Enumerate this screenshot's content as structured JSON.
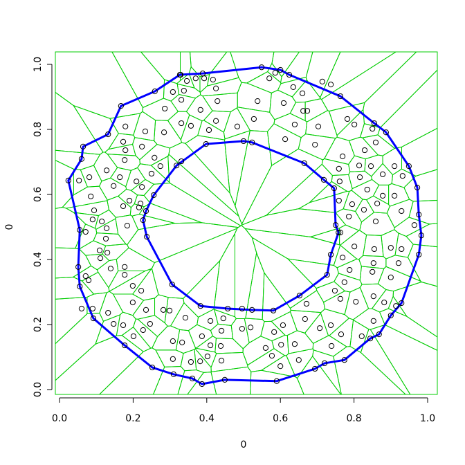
{
  "chart_data": {
    "type": "voronoi",
    "xlabel": "0",
    "ylabel": "0",
    "xlim": [
      0,
      1
    ],
    "ylim": [
      0,
      1
    ],
    "xticks": [
      {
        "value": 0,
        "label": "0.0"
      },
      0.2,
      0.4,
      0.6,
      0.8,
      {
        "value": 1,
        "label": "1.0"
      }
    ],
    "yticks": [
      {
        "value": 0,
        "label": "0.0"
      },
      0.2,
      0.4,
      0.6,
      0.8,
      {
        "value": 1,
        "label": "1.0"
      }
    ],
    "point_color": "#000000",
    "boundary_color": "#0000ff",
    "cell_color": "#00cc00",
    "points": {
      "x": [
        0.329,
        0.37,
        0.393,
        0.346,
        0.417,
        0.425,
        0.338,
        0.308,
        0.331,
        0.286,
        0.429,
        0.383,
        0.331,
        0.357,
        0.406,
        0.425,
        0.483,
        0.528,
        0.538,
        0.57,
        0.586,
        0.635,
        0.66,
        0.609,
        0.662,
        0.714,
        0.737,
        0.673,
        0.639,
        0.703,
        0.613,
        0.694,
        0.782,
        0.801,
        0.85,
        0.859,
        0.829,
        0.769,
        0.814,
        0.846,
        0.91,
        0.878,
        0.932,
        0.759,
        0.761,
        0.816,
        0.836,
        0.878,
        0.91,
        0.863,
        0.929,
        0.795,
        0.759,
        0.786,
        0.827,
        0.859,
        0.964,
        0.763,
        0.801,
        0.855,
        0.9,
        0.929,
        0.921,
        0.853,
        0.85,
        0.9,
        0.769,
        0.788,
        0.774,
        0.748,
        0.763,
        0.805,
        0.853,
        0.882,
        0.914,
        0.853,
        0.821,
        0.765,
        0.737,
        0.739,
        0.707,
        0.671,
        0.667,
        0.607,
        0.602,
        0.583,
        0.577,
        0.6,
        0.56,
        0.639,
        0.65,
        0.519,
        0.496,
        0.44,
        0.445,
        0.496,
        0.41,
        0.387,
        0.41,
        0.438,
        0.402,
        0.382,
        0.44,
        0.357,
        0.308,
        0.308,
        0.333,
        0.342,
        0.299,
        0.282,
        0.227,
        0.201,
        0.173,
        0.147,
        0.132,
        0.09,
        0.06,
        0.199,
        0.235,
        0.246,
        0.222,
        0.199,
        0.177,
        0.177,
        0.139,
        0.071,
        0.079,
        0.13,
        0.109,
        0.111,
        0.126,
        0.128,
        0.184,
        0.115,
        0.09,
        0.071,
        0.19,
        0.22,
        0.173,
        0.209,
        0.164,
        0.177,
        0.147,
        0.128,
        0.053,
        0.081,
        0.085,
        0.094,
        0.173,
        0.179,
        0.224,
        0.179,
        0.233,
        0.284,
        0.258,
        0.274,
        0.331,
        0.25,
        0.224,
        0.216
      ],
      "y": [
        0.968,
        0.957,
        0.957,
        0.949,
        0.953,
        0.926,
        0.919,
        0.915,
        0.891,
        0.864,
        0.887,
        0.86,
        0.819,
        0.811,
        0.798,
        0.826,
        0.809,
        0.832,
        0.887,
        0.957,
        0.974,
        0.93,
        0.911,
        0.881,
        0.857,
        0.947,
        0.938,
        0.857,
        0.815,
        0.809,
        0.77,
        0.753,
        0.832,
        0.815,
        0.802,
        0.76,
        0.736,
        0.717,
        0.689,
        0.687,
        0.687,
        0.662,
        0.657,
        0.679,
        0.64,
        0.653,
        0.615,
        0.596,
        0.596,
        0.572,
        0.549,
        0.57,
        0.581,
        0.532,
        0.553,
        0.517,
        0.506,
        0.483,
        0.44,
        0.432,
        0.436,
        0.432,
        0.389,
        0.389,
        0.362,
        0.345,
        0.406,
        0.368,
        0.33,
        0.304,
        0.279,
        0.27,
        0.287,
        0.268,
        0.257,
        0.211,
        0.164,
        0.17,
        0.198,
        0.134,
        0.189,
        0.264,
        0.217,
        0.198,
        0.138,
        0.177,
        0.104,
        0.072,
        0.128,
        0.14,
        0.091,
        0.191,
        0.187,
        0.181,
        0.219,
        0.249,
        0.211,
        0.164,
        0.136,
        0.134,
        0.102,
        0.087,
        0.089,
        0.085,
        0.149,
        0.094,
        0.145,
        0.221,
        0.243,
        0.245,
        0.183,
        0.164,
        0.198,
        0.202,
        0.236,
        0.249,
        0.249,
        0.268,
        0.245,
        0.202,
        0.304,
        0.319,
        0.353,
        0.377,
        0.372,
        0.349,
        0.336,
        0.421,
        0.428,
        0.404,
        0.464,
        0.496,
        0.504,
        0.517,
        0.523,
        0.485,
        0.581,
        0.572,
        0.564,
        0.64,
        0.653,
        0.706,
        0.626,
        0.674,
        0.643,
        0.653,
        0.594,
        0.551,
        0.762,
        0.736,
        0.747,
        0.809,
        0.794,
        0.791,
        0.713,
        0.687,
        0.702,
        0.664,
        0.623,
        0.56
      ]
    },
    "outer": {
      "x": [
        0.6,
        0.549,
        0.389,
        0.327,
        0.259,
        0.167,
        0.132,
        0.064,
        0.06,
        0.024,
        0.055,
        0.051,
        0.055,
        0.092,
        0.177,
        0.252,
        0.31,
        0.361,
        0.387,
        0.449,
        0.59,
        0.694,
        0.72,
        0.774,
        0.844,
        0.868,
        0.9,
        0.929,
        0.976,
        0.983,
        0.976,
        0.972,
        0.949,
        0.887,
        0.855,
        0.763,
        0.624
      ],
      "y": [
        0.983,
        0.991,
        0.972,
        0.968,
        0.917,
        0.872,
        0.785,
        0.747,
        0.709,
        0.643,
        0.491,
        0.377,
        0.317,
        0.219,
        0.136,
        0.068,
        0.047,
        0.034,
        0.017,
        0.03,
        0.026,
        0.064,
        0.081,
        0.091,
        0.157,
        0.17,
        0.228,
        0.266,
        0.415,
        0.474,
        0.538,
        0.621,
        0.687,
        0.791,
        0.819,
        0.902,
        0.968
      ]
    },
    "inner": {
      "x": [
        0.398,
        0.5,
        0.523,
        0.665,
        0.718,
        0.746,
        0.75,
        0.758,
        0.737,
        0.727,
        0.652,
        0.581,
        0.523,
        0.457,
        0.383,
        0.306,
        0.237,
        0.227,
        0.235,
        0.256,
        0.318
      ],
      "y": [
        0.755,
        0.764,
        0.76,
        0.696,
        0.645,
        0.619,
        0.506,
        0.483,
        0.415,
        0.353,
        0.289,
        0.243,
        0.245,
        0.249,
        0.257,
        0.323,
        0.47,
        0.521,
        0.549,
        0.598,
        0.689
      ]
    }
  }
}
